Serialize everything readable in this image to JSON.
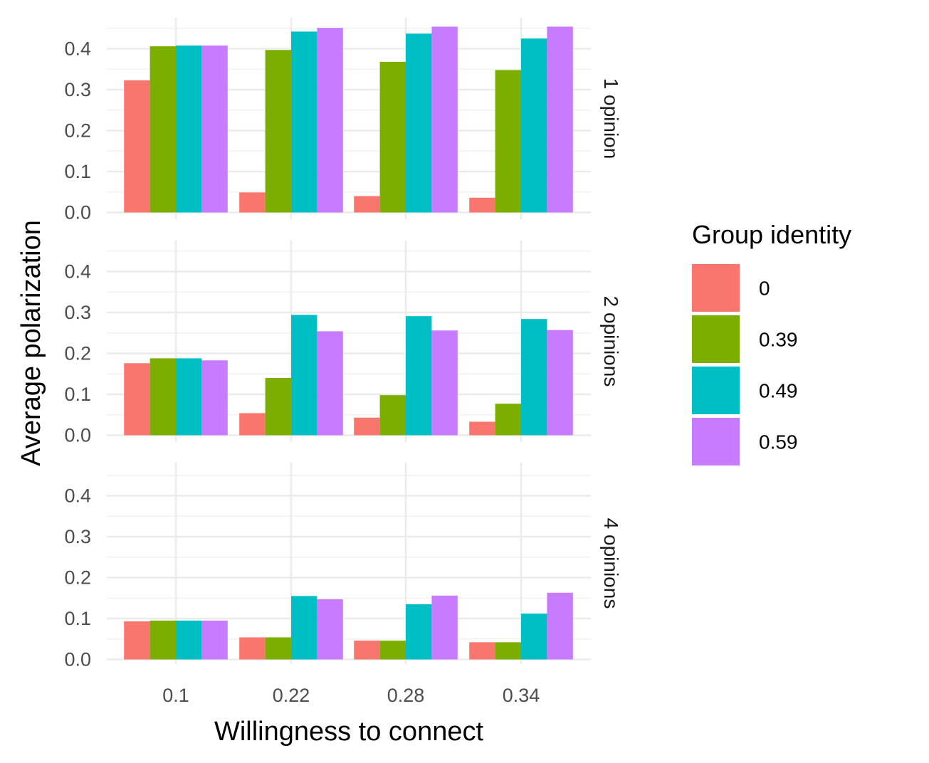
{
  "chart_data": {
    "type": "bar",
    "xlabel": "Willingness to connect",
    "ylabel": "Average polarization",
    "categories": [
      "0.1",
      "0.22",
      "0.28",
      "0.34"
    ],
    "ylim": [
      0,
      0.47
    ],
    "yticks": [
      "0.0",
      "0.1",
      "0.2",
      "0.3",
      "0.4"
    ],
    "grid": true,
    "legend": {
      "title": "Group identity",
      "position": "right",
      "entries": [
        {
          "label": "0",
          "color": "#F8766D"
        },
        {
          "label": "0.39",
          "color": "#7CAE00"
        },
        {
          "label": "0.49",
          "color": "#00BFC4"
        },
        {
          "label": "0.59",
          "color": "#C77CFF"
        }
      ]
    },
    "facets": [
      {
        "label": "1 opinion",
        "series": [
          {
            "name": "0",
            "values": [
              0.323,
              0.049,
              0.04,
              0.036
            ]
          },
          {
            "name": "0.39",
            "values": [
              0.406,
              0.397,
              0.368,
              0.348
            ]
          },
          {
            "name": "0.49",
            "values": [
              0.408,
              0.442,
              0.437,
              0.425
            ]
          },
          {
            "name": "0.59",
            "values": [
              0.408,
              0.451,
              0.454,
              0.454
            ]
          }
        ]
      },
      {
        "label": "2 opinions",
        "series": [
          {
            "name": "0",
            "values": [
              0.176,
              0.054,
              0.043,
              0.033
            ]
          },
          {
            "name": "0.39",
            "values": [
              0.188,
              0.14,
              0.098,
              0.077
            ]
          },
          {
            "name": "0.49",
            "values": [
              0.188,
              0.294,
              0.291,
              0.284
            ]
          },
          {
            "name": "0.59",
            "values": [
              0.183,
              0.254,
              0.256,
              0.257
            ]
          }
        ]
      },
      {
        "label": "4 opinions",
        "series": [
          {
            "name": "0",
            "values": [
              0.093,
              0.054,
              0.046,
              0.042
            ]
          },
          {
            "name": "0.39",
            "values": [
              0.095,
              0.054,
              0.046,
              0.042
            ]
          },
          {
            "name": "0.49",
            "values": [
              0.095,
              0.155,
              0.135,
              0.112
            ]
          },
          {
            "name": "0.59",
            "values": [
              0.095,
              0.147,
              0.156,
              0.163
            ]
          }
        ]
      }
    ]
  }
}
